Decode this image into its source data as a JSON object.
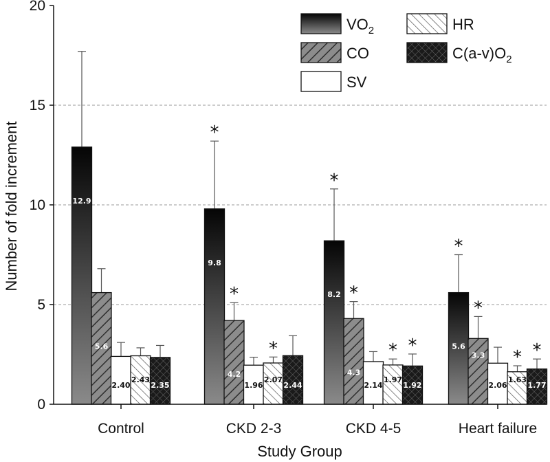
{
  "chart_data": {
    "type": "bar",
    "xlabel": "Study Group",
    "ylabel": "Number of fold increment",
    "ylim": [
      0,
      20
    ],
    "yticks": [
      0,
      5,
      10,
      15,
      20
    ],
    "grid": "horizontal dashed at 5, 10, 15",
    "categories": [
      "Control",
      "CKD 2-3",
      "CKD 4-5",
      "Heart failure"
    ],
    "series": [
      {
        "name": "VO2",
        "fill": "dark-gradient",
        "values": [
          12.9,
          9.8,
          8.2,
          5.6
        ],
        "labels": [
          "12.9",
          "9.8",
          "8.2",
          "5.6"
        ],
        "error": [
          4.8,
          3.4,
          2.6,
          1.9
        ],
        "significant": [
          false,
          true,
          true,
          true
        ]
      },
      {
        "name": "CO",
        "fill": "gray-hatch",
        "values": [
          5.6,
          4.2,
          4.3,
          3.3
        ],
        "labels": [
          "5.6",
          "4.2",
          "4.3",
          "3.3"
        ],
        "error": [
          1.2,
          0.9,
          0.85,
          1.1
        ],
        "significant": [
          false,
          true,
          true,
          true
        ]
      },
      {
        "name": "SV",
        "fill": "white",
        "values": [
          2.4,
          1.96,
          2.14,
          2.06
        ],
        "labels": [
          "2.40",
          "1.96",
          "2.14",
          "2.06"
        ],
        "error": [
          0.7,
          0.4,
          0.5,
          0.8
        ],
        "significant": [
          false,
          false,
          false,
          false
        ]
      },
      {
        "name": "HR",
        "fill": "diagonal-hatch",
        "values": [
          2.43,
          2.07,
          1.97,
          1.63
        ],
        "labels": [
          "2.43",
          "2.07",
          "1.97",
          "1.63"
        ],
        "error": [
          0.4,
          0.3,
          0.3,
          0.3
        ],
        "significant": [
          false,
          true,
          true,
          true
        ]
      },
      {
        "name": "C(a-v)O2",
        "fill": "crosshatch",
        "values": [
          2.35,
          2.44,
          1.92,
          1.77
        ],
        "labels": [
          "2.35",
          "2.44",
          "1.92",
          "1.77"
        ],
        "error": [
          0.6,
          1.0,
          0.6,
          0.5
        ],
        "significant": [
          false,
          false,
          true,
          true
        ]
      }
    ],
    "significance_marker": "*",
    "legend": {
      "placement": "top-right",
      "entries": [
        {
          "series": 0,
          "text": "VO",
          "sub": "2"
        },
        {
          "series": 3,
          "text": "HR",
          "sub": ""
        },
        {
          "series": 1,
          "text": "CO",
          "sub": ""
        },
        {
          "series": 4,
          "text": "C(a-v)O",
          "sub": "2"
        },
        {
          "series": 2,
          "text": "SV",
          "sub": ""
        }
      ]
    }
  }
}
